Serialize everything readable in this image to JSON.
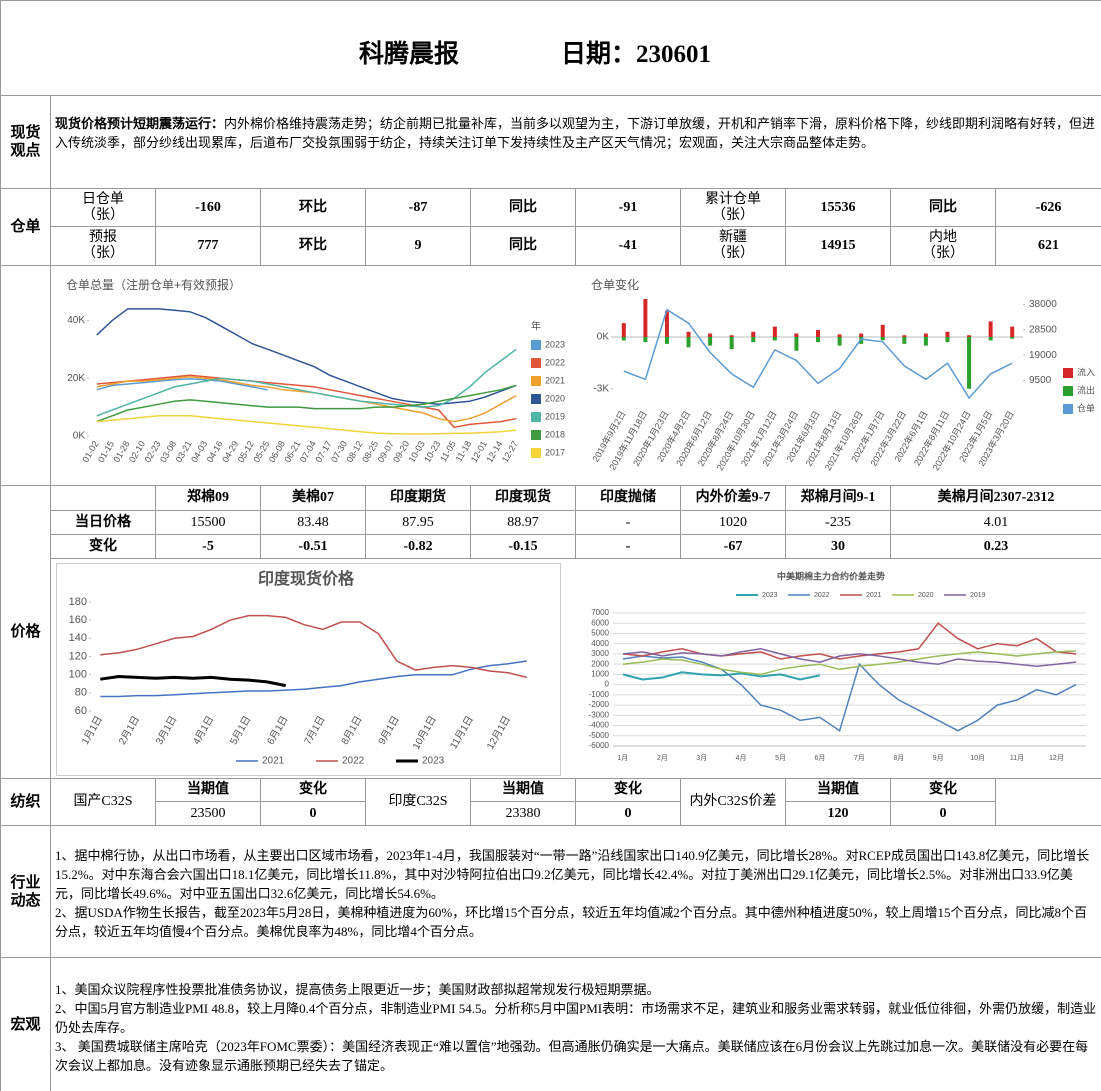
{
  "header": {
    "title": "科腾晨报",
    "date": "日期：230601"
  },
  "spot": {
    "label": "现货观点",
    "lead": "现货价格预计短期震荡运行：",
    "text": "内外棉价格维持震荡走势；纺企前期已批量补库，当前多以观望为主，下游订单放缓，开机和产销率下滑，原料价格下降，纱线即期利润略有好转，但进入传统淡季，部分纱线出现累库，后道布厂交投氛围弱于纺企，持续关注订单下发持续性及主产区天气情况；宏观面，关注大宗商品整体走势。"
  },
  "warehouse": {
    "label": "仓单",
    "rows": [
      [
        "日仓单\n（张）",
        "-160",
        "环比",
        "-87",
        "同比",
        "-91",
        "累计仓单\n（张）",
        "15536",
        "同比",
        "-626"
      ],
      [
        "预报\n（张）",
        "777",
        "环比",
        "9",
        "同比",
        "-41",
        "新疆\n（张）",
        "14915",
        "内地\n（张）",
        "621"
      ]
    ]
  },
  "price": {
    "label": "价格",
    "header": [
      "郑棉09",
      "美棉07",
      "印度期货",
      "印度现货",
      "印度抛储",
      "内外价差9-7",
      "郑棉月间9-1",
      "美棉月间2307-2312"
    ],
    "rows": [
      {
        "label": "当日价格",
        "values": [
          "15500",
          "83.48",
          "87.95",
          "88.97",
          "-",
          "1020",
          "-235",
          "4.01"
        ]
      },
      {
        "label": "变化",
        "values": [
          "-5",
          "-0.51",
          "-0.82",
          "-0.15",
          "-",
          "-67",
          "30",
          "0.23"
        ]
      }
    ]
  },
  "textile": {
    "label": "纺织",
    "groups": [
      {
        "name": "国产C32S",
        "current_label": "当期值",
        "current": "23500",
        "change_label": "变化",
        "change": "0"
      },
      {
        "name": "印度C32S",
        "current_label": "当期值",
        "current": "23380",
        "change_label": "变化",
        "change": "0"
      },
      {
        "name": "内外C32S价差",
        "current_label": "当期值",
        "current": "120",
        "change_label": "变化",
        "change": "0"
      }
    ]
  },
  "industry": {
    "label": "行业动态",
    "paragraphs": [
      "1、据中棉行协，从出口市场看，从主要出口区域市场看，2023年1-4月，我国服装对“一带一路”沿线国家出口140.9亿美元，同比增长28%。对RCEP成员国出口143.8亿美元，同比增长15.2%。对中东海合会六国出口18.1亿美元，同比增长11.8%，其中对沙特阿拉伯出口9.2亿美元，同比增长42.4%。对拉丁美洲出口29.1亿美元，同比增长2.5%。对非洲出口33.9亿美元，同比增长49.6%。对中亚五国出口32.6亿美元，同比增长54.6%。",
      "2、据USDA作物生长报告，截至2023年5月28日，美棉种植进度为60%，环比增15个百分点，较近五年均值减2个百分点。其中德州种植进度50%，较上周增15个百分点，同比减8个百分点，较近五年均值慢4个百分点。美棉优良率为48%，同比增4个百分点。"
    ]
  },
  "macro": {
    "label": "宏观",
    "paragraphs": [
      "1、美国众议院程序性投票批准债务协议，提高债务上限更近一步；美国财政部拟超常规发行极短期票据。",
      "2、中国5月官方制造业PMI 48.8，较上月降0.4个百分点，非制造业PMI 54.5。分析称5月中国PMI表明：市场需求不足，建筑业和服务业需求转弱，就业低位徘徊，外需仍放缓，制造业仍处去库存。",
      "3、 美国费城联储主席哈克（2023年FOMC票委）：美国经济表现正“难以置信”地强劲。但高通胀仍确实是一大痛点。美联储应该在6月份会议上先跳过加息一次。美联储没有必要在每次会议上都加息。没有迹象显示通胀预期已经失去了锚定。"
    ]
  },
  "chart_data": [
    {
      "type": "line",
      "title": "仓单总量（注册仓单+有效预报）",
      "legend": "right",
      "legend_title": "年",
      "grid": false,
      "categories": [
        "01-02",
        "01-15",
        "01-28",
        "02-10",
        "02-23",
        "03-08",
        "03-21",
        "04-03",
        "04-16",
        "04-29",
        "05-12",
        "05-25",
        "06-08",
        "06-21",
        "07-04",
        "07-17",
        "07-30",
        "08-12",
        "08-25",
        "09-07",
        "09-20",
        "10-03",
        "10-23",
        "11-05",
        "11-18",
        "12-01",
        "12-14",
        "12-27"
      ],
      "ylim": [
        0,
        45000
      ],
      "yticks": [
        {
          "value": 0,
          "label": "0K"
        },
        {
          "value": 20000,
          "label": "20K"
        },
        {
          "value": 40000,
          "label": "40K"
        }
      ],
      "series": [
        {
          "name": "2023",
          "color": "#5b9bd5",
          "values": [
            16000,
            17500,
            18000,
            18500,
            19000,
            19500,
            19800,
            19500,
            19000,
            18000,
            17000,
            16000,
            null,
            null,
            null,
            null,
            null,
            null,
            null,
            null,
            null,
            null,
            null,
            null,
            null,
            null,
            null,
            null
          ]
        },
        {
          "name": "2022",
          "color": "#e0573a",
          "values": [
            18000,
            18500,
            19000,
            19500,
            20000,
            20500,
            21000,
            20500,
            20000,
            19500,
            19000,
            18500,
            18000,
            17500,
            17000,
            16000,
            15000,
            14000,
            13000,
            12000,
            11000,
            10000,
            9000,
            3000,
            4000,
            4500,
            5000,
            6000
          ]
        },
        {
          "name": "2021",
          "color": "#f0a030",
          "values": [
            17000,
            18000,
            19000,
            19000,
            19500,
            20000,
            20500,
            20000,
            19500,
            18500,
            17500,
            17000,
            16000,
            15500,
            15000,
            14000,
            13000,
            12000,
            11000,
            10000,
            9000,
            8000,
            6000,
            5000,
            6000,
            8000,
            11000,
            14000
          ]
        },
        {
          "name": "2020",
          "color": "#2f5597",
          "values": [
            35000,
            40000,
            44000,
            44000,
            44000,
            43500,
            43000,
            41000,
            38000,
            35000,
            32000,
            30000,
            28000,
            26000,
            24000,
            21000,
            19000,
            17000,
            15000,
            13000,
            12000,
            11500,
            11000,
            11500,
            12000,
            13500,
            15500,
            17500
          ]
        },
        {
          "name": "2019",
          "color": "#4fb3a5",
          "values": [
            7000,
            9000,
            11000,
            13000,
            15000,
            17000,
            18000,
            19000,
            20000,
            19500,
            19000,
            18000,
            17000,
            16000,
            15000,
            14000,
            13000,
            12000,
            11500,
            11000,
            10500,
            10000,
            10500,
            13000,
            17000,
            22000,
            26000,
            30000
          ]
        },
        {
          "name": "2018",
          "color": "#3f9b40",
          "values": [
            5000,
            7000,
            9000,
            10000,
            11000,
            12000,
            12500,
            12000,
            11500,
            11000,
            10500,
            10000,
            10000,
            10000,
            9500,
            9500,
            9500,
            9500,
            10000,
            10000,
            10500,
            11000,
            12000,
            13000,
            14000,
            15000,
            16000,
            17500
          ]
        },
        {
          "name": "2017",
          "color": "#f2d43a",
          "values": [
            5000,
            5500,
            6000,
            6500,
            7000,
            7000,
            7000,
            6500,
            6000,
            5500,
            5000,
            4500,
            4000,
            3500,
            3000,
            2500,
            2000,
            1500,
            1000,
            800,
            700,
            700,
            800,
            900,
            1000,
            1200,
            1500,
            2000
          ]
        }
      ]
    },
    {
      "type": "bar-line",
      "title": "仓单变化",
      "legend": "right",
      "grid": false,
      "categories": [
        "2019年9月2日",
        "2019年11月18日",
        "2020年1月23日",
        "2020年4月2日",
        "2020年6月12日",
        "2020年8月24日",
        "2020年10月30日",
        "2021年1月12日",
        "2021年3月24日",
        "2021年6月3日",
        "2021年8月13日",
        "2021年10月26日",
        "2022年1月7日",
        "2022年3月22日",
        "2022年6月1日",
        "2022年8月11日",
        "2022年10月24日",
        "2023年1月5日",
        "2023年3月20日"
      ],
      "ylim": [
        -4000,
        2200
      ],
      "yticks": [
        {
          "value": 0,
          "label": "0K"
        },
        {
          "value": -3000,
          "label": "-3K"
        }
      ],
      "y2lim": [
        0,
        40000
      ],
      "y2ticks": [
        9500,
        19000,
        28500,
        38000
      ],
      "series": [
        {
          "name": "流入",
          "type": "bar",
          "color": "#d62728",
          "values": [
            800,
            2200,
            1500,
            300,
            200,
            100,
            300,
            600,
            200,
            400,
            150,
            200,
            700,
            100,
            200,
            300,
            100,
            900,
            600
          ]
        },
        {
          "name": "流出",
          "type": "bar",
          "color": "#2ca02c",
          "values": [
            -200,
            -300,
            -400,
            -600,
            -500,
            -700,
            -300,
            -200,
            -800,
            -300,
            -500,
            -400,
            -200,
            -400,
            -500,
            -300,
            -3000,
            -200,
            -100
          ]
        },
        {
          "name": "仓单",
          "type": "line",
          "axis": "y2",
          "color": "#5b9bd5",
          "values": [
            13000,
            10000,
            36000,
            31000,
            20000,
            12000,
            7000,
            21000,
            17000,
            8500,
            14000,
            25000,
            24000,
            15000,
            10000,
            16000,
            3000,
            12000,
            16000
          ]
        }
      ]
    },
    {
      "type": "line",
      "title": "印度现货价格",
      "legend": "bottom",
      "grid": false,
      "categories": [
        "1月1日",
        null,
        "2月1日",
        null,
        "3月1日",
        null,
        "4月1日",
        null,
        "5月1日",
        null,
        "6月1日",
        null,
        "7月1日",
        null,
        "8月1日",
        null,
        "9月1日",
        null,
        "10月1日",
        null,
        "11月1日",
        null,
        "12月1日",
        null
      ],
      "ylim": [
        60,
        180
      ],
      "yticks": [
        60,
        80,
        100,
        120,
        140,
        160,
        180
      ],
      "series": [
        {
          "name": "2021",
          "color": "#4472c4",
          "values": [
            76,
            76,
            77,
            77,
            78,
            79,
            80,
            81,
            82,
            82,
            83,
            84,
            86,
            88,
            92,
            95,
            98,
            100,
            100,
            100,
            106,
            110,
            112,
            115
          ]
        },
        {
          "name": "2022",
          "color": "#c0504d",
          "values": [
            122,
            124,
            128,
            134,
            140,
            142,
            150,
            160,
            165,
            165,
            163,
            155,
            150,
            158,
            158,
            145,
            115,
            105,
            108,
            110,
            108,
            104,
            102,
            97
          ]
        },
        {
          "name": "2023",
          "color": "#000000",
          "line_width": 3,
          "values": [
            95,
            98,
            97,
            96,
            97,
            96,
            97,
            95,
            94,
            92,
            88,
            null,
            null,
            null,
            null,
            null,
            null,
            null,
            null,
            null,
            null,
            null,
            null,
            null
          ]
        }
      ]
    },
    {
      "type": "line",
      "title": "中美期棉主力合约价差走势",
      "legend": "top",
      "grid": true,
      "categories": [
        "1月",
        null,
        "2月",
        null,
        "3月",
        null,
        "4月",
        null,
        "5月",
        null,
        "6月",
        null,
        "7月",
        null,
        "8月",
        null,
        "9月",
        null,
        "10月",
        null,
        "11月",
        null,
        "12月",
        null
      ],
      "ylim": [
        -6000,
        7000
      ],
      "yticks": [
        -6000,
        -5000,
        -4000,
        -3000,
        -2000,
        -1000,
        0,
        1000,
        2000,
        3000,
        4000,
        5000,
        6000,
        7000
      ],
      "series": [
        {
          "name": "2023",
          "color": "#31a3b0",
          "line_width": 2,
          "values": [
            1000,
            500,
            700,
            1200,
            1000,
            900,
            1100,
            800,
            1000,
            500,
            900,
            null,
            null,
            null,
            null,
            null,
            null,
            null,
            null,
            null,
            null,
            null,
            null,
            null
          ]
        },
        {
          "name": "2022",
          "color": "#4f81bd",
          "values": [
            2500,
            2800,
            2600,
            2700,
            2200,
            1500,
            0,
            -2000,
            -2500,
            -3500,
            -3200,
            -4500,
            2000,
            0,
            -1500,
            -2500,
            -3500,
            -4500,
            -3500,
            -2000,
            -1500,
            -500,
            -1000,
            0
          ]
        },
        {
          "name": "2021",
          "color": "#c0504d",
          "values": [
            3000,
            2800,
            3200,
            3500,
            3000,
            2800,
            3000,
            3200,
            2500,
            2800,
            3000,
            2500,
            2800,
            3000,
            3200,
            3500,
            6000,
            4500,
            3500,
            4000,
            3800,
            4500,
            3200,
            3000
          ]
        },
        {
          "name": "2020",
          "color": "#9bbb59",
          "values": [
            2000,
            2200,
            2500,
            2400,
            2000,
            1500,
            1200,
            1000,
            1500,
            1800,
            2000,
            1500,
            1800,
            2000,
            2200,
            2500,
            2800,
            3000,
            3200,
            3000,
            2800,
            3000,
            3200,
            3300
          ]
        },
        {
          "name": "2019",
          "color": "#8064a2",
          "values": [
            3000,
            3200,
            2800,
            3100,
            3000,
            2800,
            3200,
            3500,
            3000,
            2500,
            2200,
            2800,
            3000,
            2800,
            2500,
            2200,
            2000,
            2500,
            2300,
            2200,
            2000,
            1800,
            2000,
            2200
          ]
        }
      ]
    }
  ]
}
